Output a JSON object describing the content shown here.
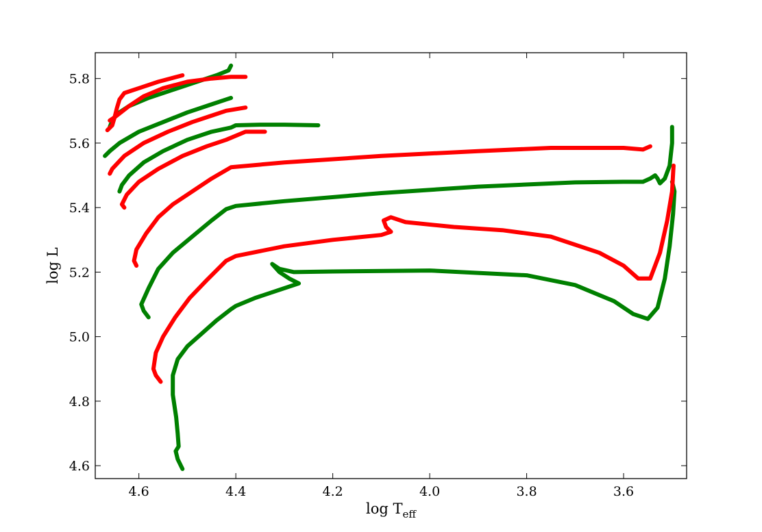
{
  "chart_data": {
    "type": "line",
    "xlabel": "log T",
    "xlabel_sub": "eff",
    "ylabel": "log L",
    "xlim": [
      4.69,
      3.47
    ],
    "ylim": [
      4.56,
      5.88
    ],
    "x_inverted": true,
    "xticks": [
      {
        "value": 4.6,
        "label": "4.6"
      },
      {
        "value": 4.4,
        "label": "4.4"
      },
      {
        "value": 4.2,
        "label": "4.2"
      },
      {
        "value": 4.0,
        "label": "4.0"
      },
      {
        "value": 3.8,
        "label": "3.8"
      },
      {
        "value": 3.6,
        "label": "3.6"
      }
    ],
    "yticks": [
      {
        "value": 4.6,
        "label": "4.6"
      },
      {
        "value": 4.8,
        "label": "4.8"
      },
      {
        "value": 5.0,
        "label": "5.0"
      },
      {
        "value": 5.2,
        "label": "5.2"
      },
      {
        "value": 5.4,
        "label": "5.4"
      },
      {
        "value": 5.6,
        "label": "5.6"
      },
      {
        "value": 5.8,
        "label": "5.8"
      }
    ],
    "grid": false,
    "colors": {
      "red": "#ff0000",
      "green": "#008000"
    },
    "series": [
      {
        "color": "green",
        "points": [
          [
            4.51,
            4.59
          ],
          [
            4.52,
            4.62
          ],
          [
            4.524,
            4.645
          ],
          [
            4.518,
            4.66
          ],
          [
            4.52,
            4.7
          ],
          [
            4.523,
            4.75
          ],
          [
            4.53,
            4.82
          ],
          [
            4.53,
            4.88
          ],
          [
            4.52,
            4.93
          ],
          [
            4.5,
            4.97
          ],
          [
            4.47,
            5.01
          ],
          [
            4.44,
            5.05
          ],
          [
            4.41,
            5.085
          ],
          [
            4.4,
            5.095
          ],
          [
            4.36,
            5.12
          ],
          [
            4.32,
            5.14
          ],
          [
            4.27,
            5.165
          ],
          [
            4.29,
            5.18
          ],
          [
            4.31,
            5.2
          ],
          [
            4.325,
            5.225
          ],
          [
            4.31,
            5.21
          ],
          [
            4.28,
            5.2
          ],
          [
            4.2,
            5.202
          ],
          [
            4.0,
            5.205
          ],
          [
            3.8,
            5.19
          ],
          [
            3.7,
            5.16
          ],
          [
            3.62,
            5.11
          ],
          [
            3.58,
            5.07
          ],
          [
            3.55,
            5.055
          ],
          [
            3.53,
            5.09
          ],
          [
            3.515,
            5.18
          ],
          [
            3.505,
            5.28
          ],
          [
            3.498,
            5.38
          ],
          [
            3.495,
            5.45
          ],
          [
            3.5,
            5.48
          ]
        ]
      },
      {
        "color": "red",
        "points": [
          [
            4.555,
            4.86
          ],
          [
            4.565,
            4.88
          ],
          [
            4.57,
            4.9
          ],
          [
            4.565,
            4.95
          ],
          [
            4.55,
            5.0
          ],
          [
            4.525,
            5.06
          ],
          [
            4.495,
            5.12
          ],
          [
            4.46,
            5.175
          ],
          [
            4.42,
            5.235
          ],
          [
            4.4,
            5.25
          ],
          [
            4.3,
            5.28
          ],
          [
            4.2,
            5.3
          ],
          [
            4.1,
            5.315
          ],
          [
            4.08,
            5.325
          ],
          [
            4.09,
            5.34
          ],
          [
            4.095,
            5.36
          ],
          [
            4.08,
            5.37
          ],
          [
            4.05,
            5.355
          ],
          [
            3.95,
            5.34
          ],
          [
            3.85,
            5.33
          ],
          [
            3.75,
            5.31
          ],
          [
            3.65,
            5.26
          ],
          [
            3.6,
            5.22
          ],
          [
            3.57,
            5.18
          ],
          [
            3.545,
            5.18
          ],
          [
            3.525,
            5.26
          ],
          [
            3.51,
            5.36
          ],
          [
            3.5,
            5.45
          ],
          [
            3.497,
            5.53
          ]
        ]
      },
      {
        "color": "green",
        "points": [
          [
            4.58,
            5.06
          ],
          [
            4.59,
            5.08
          ],
          [
            4.595,
            5.1
          ],
          [
            4.58,
            5.15
          ],
          [
            4.56,
            5.21
          ],
          [
            4.53,
            5.26
          ],
          [
            4.49,
            5.31
          ],
          [
            4.45,
            5.36
          ],
          [
            4.42,
            5.395
          ],
          [
            4.4,
            5.405
          ],
          [
            4.3,
            5.42
          ],
          [
            4.1,
            5.445
          ],
          [
            3.9,
            5.465
          ],
          [
            3.7,
            5.478
          ],
          [
            3.6,
            5.48
          ],
          [
            3.56,
            5.48
          ],
          [
            3.545,
            5.49
          ],
          [
            3.535,
            5.5
          ],
          [
            3.53,
            5.49
          ],
          [
            3.525,
            5.475
          ],
          [
            3.515,
            5.49
          ],
          [
            3.505,
            5.53
          ],
          [
            3.5,
            5.6
          ],
          [
            3.5,
            5.65
          ]
        ]
      },
      {
        "color": "red",
        "points": [
          [
            4.605,
            5.22
          ],
          [
            4.61,
            5.235
          ],
          [
            4.605,
            5.27
          ],
          [
            4.585,
            5.32
          ],
          [
            4.56,
            5.37
          ],
          [
            4.53,
            5.41
          ],
          [
            4.49,
            5.45
          ],
          [
            4.45,
            5.49
          ],
          [
            4.41,
            5.525
          ],
          [
            4.3,
            5.54
          ],
          [
            4.1,
            5.56
          ],
          [
            3.9,
            5.575
          ],
          [
            3.75,
            5.585
          ],
          [
            3.65,
            5.585
          ],
          [
            3.6,
            5.585
          ],
          [
            3.56,
            5.58
          ],
          [
            3.545,
            5.59
          ]
        ]
      },
      {
        "color": "green",
        "points": [
          [
            4.64,
            5.45
          ],
          [
            4.635,
            5.47
          ],
          [
            4.62,
            5.5
          ],
          [
            4.59,
            5.54
          ],
          [
            4.55,
            5.575
          ],
          [
            4.5,
            5.61
          ],
          [
            4.45,
            5.635
          ],
          [
            4.41,
            5.648
          ],
          [
            4.4,
            5.655
          ],
          [
            4.35,
            5.657
          ],
          [
            4.3,
            5.657
          ],
          [
            4.23,
            5.655
          ]
        ]
      },
      {
        "color": "red",
        "points": [
          [
            4.63,
            5.4
          ],
          [
            4.635,
            5.41
          ],
          [
            4.625,
            5.44
          ],
          [
            4.6,
            5.48
          ],
          [
            4.56,
            5.52
          ],
          [
            4.51,
            5.56
          ],
          [
            4.46,
            5.59
          ],
          [
            4.42,
            5.61
          ],
          [
            4.38,
            5.635
          ],
          [
            4.34,
            5.635
          ]
        ]
      },
      {
        "color": "green",
        "points": [
          [
            4.67,
            5.56
          ],
          [
            4.66,
            5.575
          ],
          [
            4.64,
            5.6
          ],
          [
            4.6,
            5.635
          ],
          [
            4.55,
            5.665
          ],
          [
            4.5,
            5.695
          ],
          [
            4.45,
            5.72
          ],
          [
            4.42,
            5.735
          ],
          [
            4.41,
            5.74
          ]
        ]
      },
      {
        "color": "red",
        "points": [
          [
            4.66,
            5.505
          ],
          [
            4.655,
            5.52
          ],
          [
            4.63,
            5.56
          ],
          [
            4.59,
            5.6
          ],
          [
            4.54,
            5.635
          ],
          [
            4.49,
            5.665
          ],
          [
            4.45,
            5.685
          ],
          [
            4.42,
            5.7
          ],
          [
            4.38,
            5.71
          ]
        ]
      },
      {
        "color": "green",
        "points": [
          [
            4.66,
            5.65
          ],
          [
            4.655,
            5.67
          ],
          [
            4.645,
            5.69
          ],
          [
            4.62,
            5.715
          ],
          [
            4.58,
            5.74
          ],
          [
            4.53,
            5.765
          ],
          [
            4.48,
            5.79
          ],
          [
            4.44,
            5.81
          ],
          [
            4.415,
            5.825
          ],
          [
            4.41,
            5.84
          ]
        ]
      },
      {
        "color": "red",
        "points": [
          [
            4.665,
            5.64
          ],
          [
            4.655,
            5.655
          ],
          [
            4.65,
            5.68
          ],
          [
            4.645,
            5.71
          ],
          [
            4.64,
            5.735
          ],
          [
            4.63,
            5.755
          ],
          [
            4.6,
            5.77
          ],
          [
            4.56,
            5.79
          ],
          [
            4.51,
            5.81
          ]
        ]
      },
      {
        "color": "red",
        "points": [
          [
            4.66,
            5.67
          ],
          [
            4.65,
            5.68
          ],
          [
            4.62,
            5.715
          ],
          [
            4.59,
            5.745
          ],
          [
            4.55,
            5.77
          ],
          [
            4.5,
            5.79
          ],
          [
            4.45,
            5.8
          ],
          [
            4.41,
            5.805
          ],
          [
            4.38,
            5.805
          ]
        ]
      }
    ]
  }
}
